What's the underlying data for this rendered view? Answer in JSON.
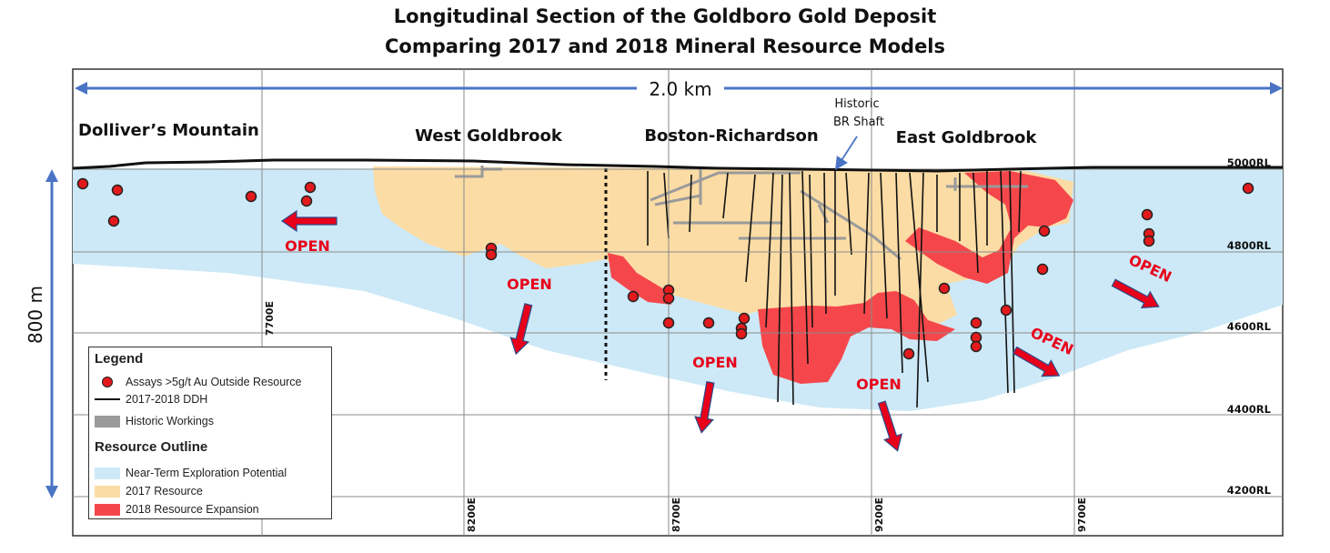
{
  "title_line1": "Longitudinal Section of the Goldboro Gold Deposit",
  "title_line2": "Comparing 2017 and 2018 Mineral Resource Models",
  "scale_horizontal": "2.0 km",
  "scale_vertical": "800 m",
  "areas": {
    "dollivers": "Dolliver’s Mountain",
    "west": "West Goldbrook",
    "boston": "Boston-Richardson",
    "east": "East Goldbrook"
  },
  "shaft": {
    "line1": "Historic",
    "line2": "BR Shaft"
  },
  "open_label": "OPEN",
  "elevations": [
    "5000RL",
    "4800RL",
    "4600RL",
    "4400RL",
    "4200RL"
  ],
  "eastings": [
    "7700E",
    "8200E",
    "8700E",
    "9200E",
    "9700E"
  ],
  "legend": {
    "title": "Legend",
    "assays": "Assays >5g/t Au Outside Resource",
    "ddh": "2017-2018 DDH",
    "historic": "Historic Workings",
    "outline_title": "Resource Outline",
    "nearterm": "Near-Term Exploration Potential",
    "r2017": "2017 Resource",
    "r2018": "2018 Resource Expansion"
  },
  "colors": {
    "nearterm": "#cde9f7",
    "r2017": "#fbdca4",
    "r2018": "#f5474b",
    "assay": "#e31a1c",
    "arrow_blue": "#4a74c4",
    "open_red": "#e8001a"
  }
}
